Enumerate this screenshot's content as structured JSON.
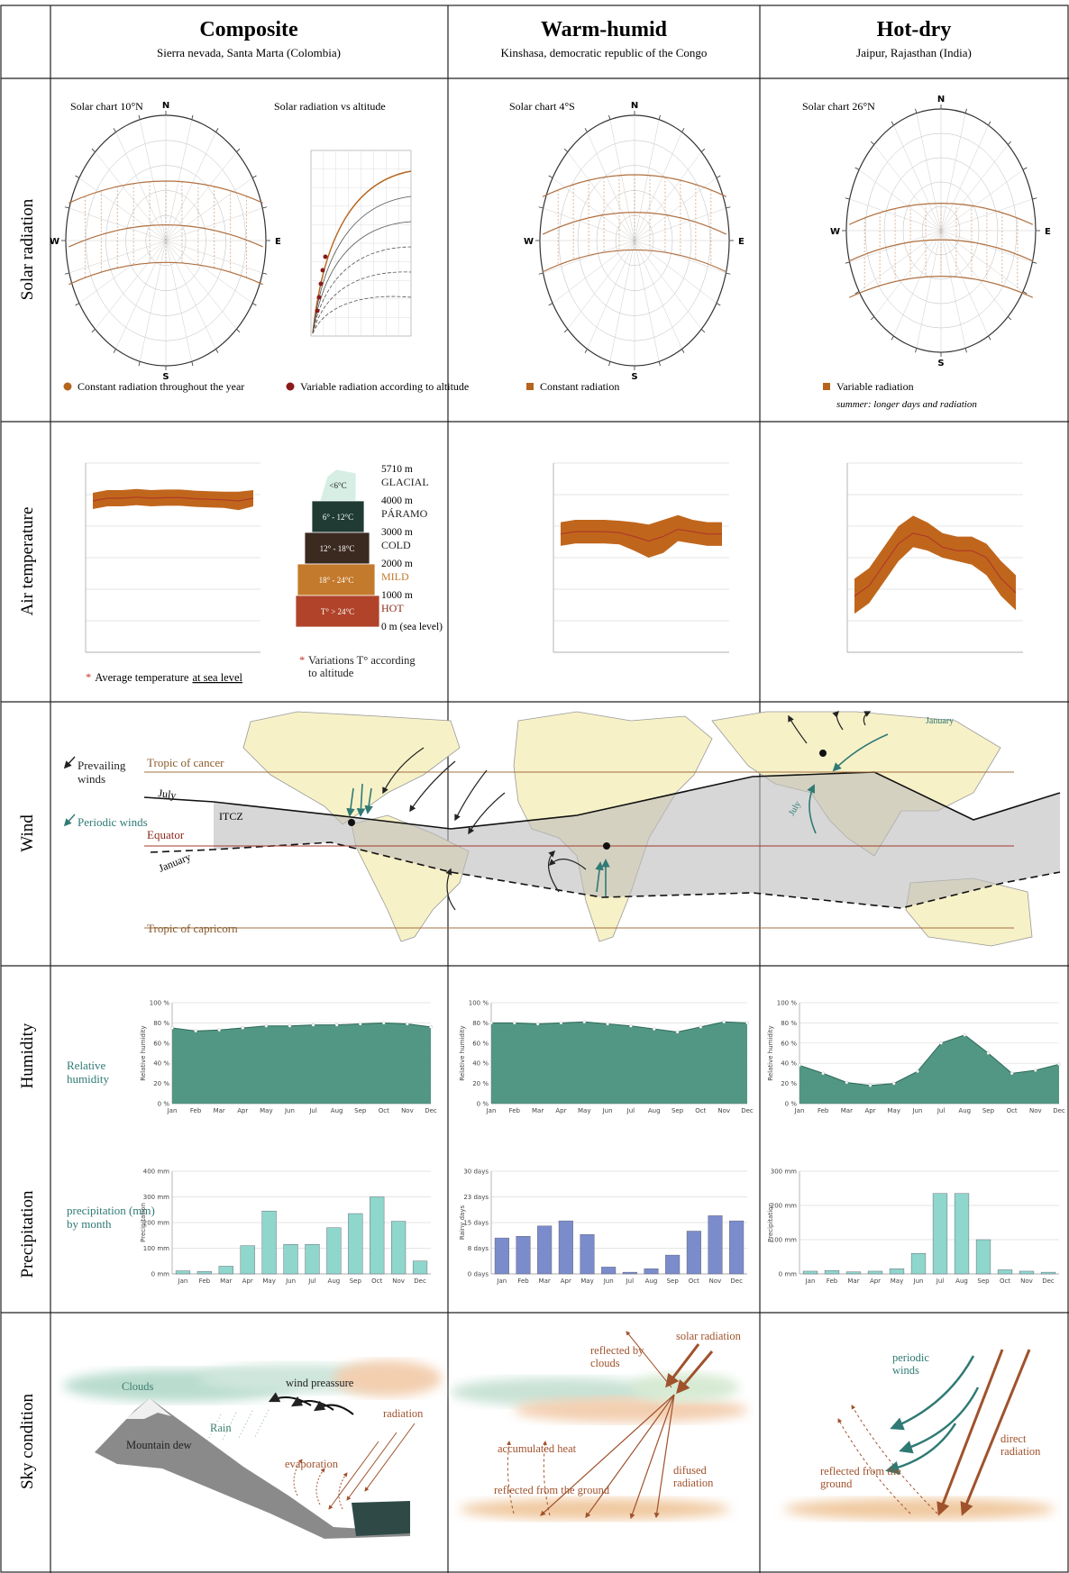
{
  "header": {
    "columns": [
      {
        "title": "Composite",
        "subtitle": "Sierra nevada, Santa Marta (Colombia)"
      },
      {
        "title": "Warm-humid",
        "subtitle": "Kinshasa, democratic republic of the Congo"
      },
      {
        "title": "Hot-dry",
        "subtitle": "Jaipur, Rajasthan (India)"
      }
    ]
  },
  "rows": [
    "Solar radiation",
    "Air temperature",
    "Wind",
    "Humidity",
    "Precipitation",
    "Sky condition"
  ],
  "solar": {
    "compass": {
      "north": "N",
      "east": "E",
      "south": "S",
      "west": "W"
    },
    "charts": [
      "Solar chart 10°N",
      "Solar chart 4°S",
      "Solar chart 26°N"
    ],
    "altitude_chart": "Solar radiation vs altitude",
    "legend": [
      {
        "text": "Constant radiation throughout the year",
        "color": "#b5651d"
      },
      {
        "text": "Variable radiation according to altitude",
        "color": "#8b1a1a"
      },
      {
        "text": "Constant radiation",
        "color": "#b5651d"
      },
      {
        "text": "Variable radiation",
        "color": "#b5651d",
        "note": "summer: longer days and radiation"
      }
    ]
  },
  "temperature": {
    "marker": "*",
    "note": "Average temperature",
    "note_underlined": "at sea level",
    "altitude_note": "Variations T° according to altitude",
    "levels": [
      "5710 m",
      "4000 m",
      "3000 m",
      "2000 m",
      "1000 m",
      "0 m (sea level)"
    ],
    "zones": [
      {
        "name": "GLACIAL",
        "range": "<6°C",
        "color": "#d6eee4",
        "label_color": "#222"
      },
      {
        "name": "PÁRAMO",
        "range": "6° - 12°C",
        "color": "#1f3b33",
        "label_color": "#222"
      },
      {
        "name": "COLD",
        "range": "12° - 18°C",
        "color": "#3b2a20",
        "label_color": "#222"
      },
      {
        "name": "MILD",
        "range": "18° - 24°C",
        "color": "#c47a2c",
        "label_color": "#c47a2c"
      },
      {
        "name": "HOT",
        "range": "T° > 24°C",
        "color": "#b0432a",
        "label_color": "#8b2a1a"
      }
    ]
  },
  "wind": {
    "legend": [
      "Prevailing winds",
      "Periodic winds"
    ],
    "cancer": "Tropic of cancer",
    "equator": "Equator",
    "capricorn": "Tropic of capricorn",
    "itcz": "ITCZ",
    "july": "July",
    "january": "January"
  },
  "humidity_label": "Relative humidity",
  "precipitation_label": "precipitation (mm) by month",
  "sky": [
    [
      "Clouds",
      "wind preassure",
      "radiation",
      "Rain",
      "Mountain dew",
      "evaporation"
    ],
    [
      "reflected by clouds",
      "solar radiation",
      "accumulated heat",
      "difused radiation",
      "reflected from the ground"
    ],
    [
      "periodic winds",
      "direct radiation",
      "reflected from the ground"
    ]
  ],
  "chart_data": [
    {
      "type": "area",
      "ylabel": "Relative humidity",
      "categories": [
        "Jan",
        "Feb",
        "Mar",
        "Apr",
        "May",
        "Jun",
        "Jul",
        "Aug",
        "Sep",
        "Oct",
        "Nov",
        "Dec"
      ],
      "values": [
        75,
        72,
        73,
        75,
        77,
        77,
        78,
        78,
        79,
        80,
        79,
        76
      ],
      "color": "#3f8c76",
      "ylim": [
        0,
        100
      ],
      "yticks": [
        {
          "value": 0,
          "label": "0 %"
        },
        {
          "value": 20,
          "label": "20 %"
        },
        {
          "value": 40,
          "label": "40 %"
        },
        {
          "value": 60,
          "label": "60 %"
        },
        {
          "value": 80,
          "label": "80 %"
        },
        {
          "value": 100,
          "label": "100 %"
        }
      ],
      "grid": true
    },
    {
      "type": "area",
      "ylabel": "Relative humidity",
      "categories": [
        "Jan",
        "Feb",
        "Mar",
        "Apr",
        "May",
        "Jun",
        "Jul",
        "Aug",
        "Sep",
        "Oct",
        "Nov",
        "Dec"
      ],
      "values": [
        80,
        80,
        79,
        80,
        81,
        79,
        77,
        74,
        71,
        76,
        81,
        80
      ],
      "color": "#3f8c76",
      "ylim": [
        0,
        100
      ],
      "yticks": [
        {
          "value": 0,
          "label": "0 %"
        },
        {
          "value": 20,
          "label": "20 %"
        },
        {
          "value": 40,
          "label": "40 %"
        },
        {
          "value": 60,
          "label": "60 %"
        },
        {
          "value": 80,
          "label": "80 %"
        },
        {
          "value": 100,
          "label": "100 %"
        }
      ],
      "grid": true
    },
    {
      "type": "area",
      "ylabel": "Relative humidity",
      "categories": [
        "Jan",
        "Feb",
        "Mar",
        "Apr",
        "May",
        "Jun",
        "Jul",
        "Aug",
        "Sep",
        "Oct",
        "Nov",
        "Dec"
      ],
      "values": [
        38,
        30,
        21,
        18,
        20,
        32,
        60,
        68,
        50,
        30,
        33,
        39
      ],
      "color": "#3f8c76",
      "ylim": [
        0,
        100
      ],
      "yticks": [
        {
          "value": 0,
          "label": "0 %"
        },
        {
          "value": 20,
          "label": "20 %"
        },
        {
          "value": 40,
          "label": "40 %"
        },
        {
          "value": 60,
          "label": "60 %"
        },
        {
          "value": 80,
          "label": "80 %"
        },
        {
          "value": 100,
          "label": "100 %"
        }
      ],
      "grid": true
    },
    {
      "type": "bar",
      "ylabel": "Precipitation",
      "categories": [
        "Jan",
        "Feb",
        "Mar",
        "Apr",
        "May",
        "Jun",
        "Jul",
        "Aug",
        "Sep",
        "Oct",
        "Nov",
        "Dec"
      ],
      "values": [
        12,
        10,
        30,
        110,
        245,
        115,
        115,
        180,
        235,
        300,
        205,
        50
      ],
      "color": "#8fd6cc",
      "ylim": [
        0,
        400
      ],
      "yticks": [
        {
          "value": 0,
          "label": "0 mm"
        },
        {
          "value": 100,
          "label": "100 mm"
        },
        {
          "value": 200,
          "label": "200 mm"
        },
        {
          "value": 300,
          "label": "300 mm"
        },
        {
          "value": 400,
          "label": "400 mm"
        }
      ],
      "grid": true
    },
    {
      "type": "bar",
      "ylabel": "Rainy days",
      "categories": [
        "Jan",
        "Feb",
        "Mar",
        "Apr",
        "May",
        "Jun",
        "Jul",
        "Aug",
        "Sep",
        "Oct",
        "Nov",
        "Dec"
      ],
      "values": [
        10.5,
        11,
        14,
        15.5,
        11.5,
        2,
        0.5,
        1.5,
        5.5,
        12.5,
        17,
        15.5
      ],
      "color": "#7b8ccc",
      "ylim": [
        0,
        30
      ],
      "yticks": [
        {
          "value": 0,
          "label": "0 days"
        },
        {
          "value": 7.5,
          "label": "8 days"
        },
        {
          "value": 15,
          "label": "15 days"
        },
        {
          "value": 22.5,
          "label": "23 days"
        },
        {
          "value": 30,
          "label": "30 days"
        }
      ],
      "grid": true
    },
    {
      "type": "bar",
      "ylabel": "Precipitation",
      "categories": [
        "Jan",
        "Feb",
        "Mar",
        "Apr",
        "May",
        "Jun",
        "Jul",
        "Aug",
        "Sep",
        "Oct",
        "Nov",
        "Dec"
      ],
      "values": [
        8,
        10,
        6,
        8,
        15,
        60,
        235,
        235,
        100,
        12,
        8,
        5
      ],
      "color": "#8fd6cc",
      "ylim": [
        0,
        300
      ],
      "yticks": [
        {
          "value": 0,
          "label": "0 mm"
        },
        {
          "value": 100,
          "label": "100 mm"
        },
        {
          "value": 200,
          "label": "200 mm"
        },
        {
          "value": 300,
          "label": "300 mm"
        }
      ],
      "grid": true
    },
    {
      "type": "band",
      "values": [
        28,
        28.5,
        28.5,
        28.7,
        28.5,
        28.6,
        28.6,
        28.4,
        28.3,
        28.2,
        28,
        28.5
      ],
      "low": [
        26.5,
        27,
        27,
        27.2,
        27,
        27.1,
        27.1,
        26.9,
        26.8,
        26.7,
        26.3,
        27
      ],
      "high": [
        29.5,
        30,
        30,
        30.2,
        30,
        30.1,
        30.1,
        29.9,
        29.8,
        29.7,
        29.7,
        30
      ],
      "color": "#c0661c",
      "line_color": "#b03a2a",
      "ylim": [
        0,
        35
      ]
    },
    {
      "type": "band",
      "values": [
        25,
        25.5,
        25.5,
        25.5,
        25.3,
        24.5,
        23.5,
        24.5,
        26,
        25.5,
        25,
        25
      ],
      "low": [
        22.5,
        23,
        23,
        23,
        22.8,
        21.5,
        20,
        21,
        23.5,
        23,
        22.5,
        22.5
      ],
      "high": [
        27.5,
        28,
        28,
        28,
        27.8,
        27.5,
        27,
        28,
        29,
        28,
        27.5,
        27.5
      ],
      "color": "#c0661c",
      "line_color": "#b03a2a",
      "ylim": [
        0,
        40
      ]
    },
    {
      "type": "band",
      "values": [
        16,
        19,
        25,
        31,
        34,
        33,
        30,
        29,
        29,
        27,
        21,
        17
      ],
      "low": [
        11,
        14,
        20,
        26,
        30,
        29,
        27,
        26,
        25,
        22,
        16,
        12
      ],
      "high": [
        21,
        24,
        30,
        36,
        39,
        37,
        34,
        33,
        33,
        31,
        26,
        22
      ],
      "color": "#c0661c",
      "line_color": "#b03a2a",
      "ylim": [
        0,
        54
      ]
    }
  ]
}
